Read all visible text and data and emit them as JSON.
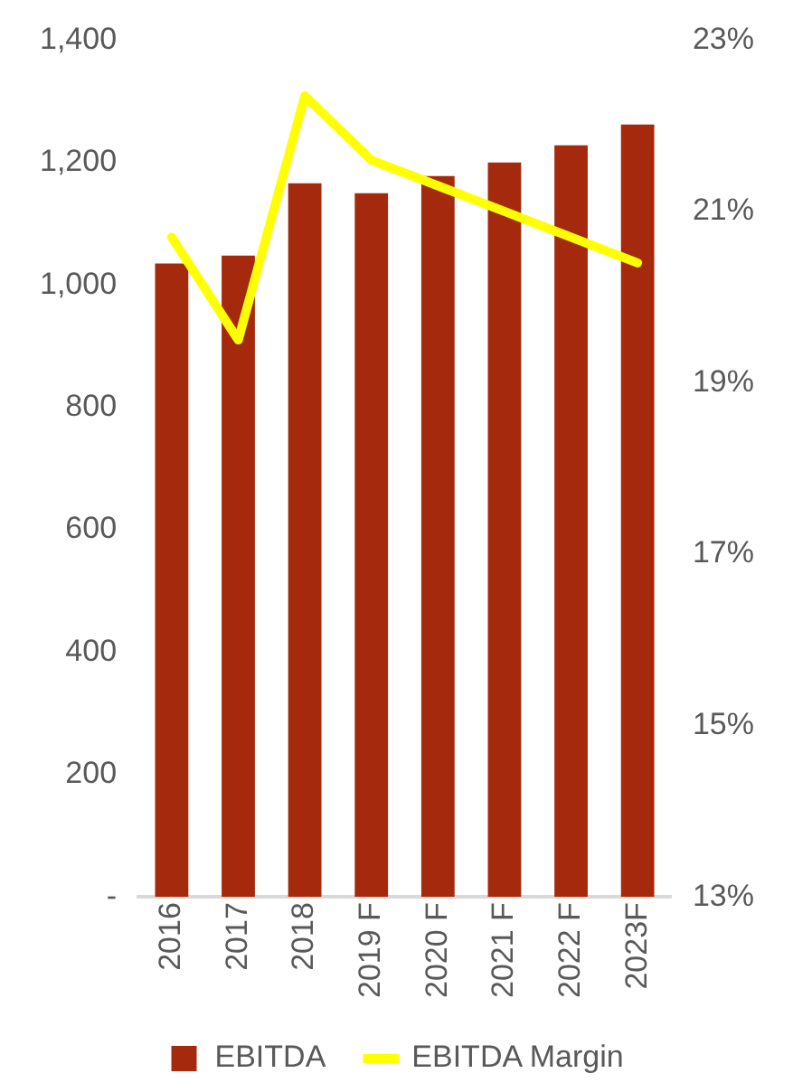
{
  "chart_data": {
    "type": "bar",
    "categories": [
      "2016",
      "2017",
      "2018",
      "2019 F",
      "2020 F",
      "2021 F",
      "2022 F",
      "2023F"
    ],
    "series": [
      {
        "name": "EBITDA",
        "color": "#a52a0d",
        "values": [
          1035,
          1048,
          1166,
          1150,
          1178,
          1200,
          1228,
          1262
        ]
      },
      {
        "name": "EBITDA Margin",
        "type": "line",
        "axis": "y2",
        "color": "#ffff00",
        "marker": "none",
        "values": [
          20.7,
          19.5,
          22.35,
          21.6,
          21.3,
          21.0,
          20.7,
          20.4
        ]
      }
    ],
    "ylim": [
      0,
      1400
    ],
    "yticks": [
      {
        "value": 0,
        "label": "-"
      },
      200,
      400,
      600,
      800,
      {
        "value": 1000,
        "label": "1,000"
      },
      {
        "value": 1200,
        "label": "1,200"
      },
      {
        "value": 1400,
        "label": "1,400"
      }
    ],
    "y2lim": [
      13,
      23
    ],
    "y2ticks": [
      {
        "value": 13,
        "label": "13%"
      },
      {
        "value": 15,
        "label": "15%"
      },
      {
        "value": 17,
        "label": "17%"
      },
      {
        "value": 19,
        "label": "19%"
      },
      {
        "value": 21,
        "label": "21%"
      },
      {
        "value": 23,
        "label": "23%"
      }
    ],
    "grid": false,
    "legend": "bottom"
  }
}
